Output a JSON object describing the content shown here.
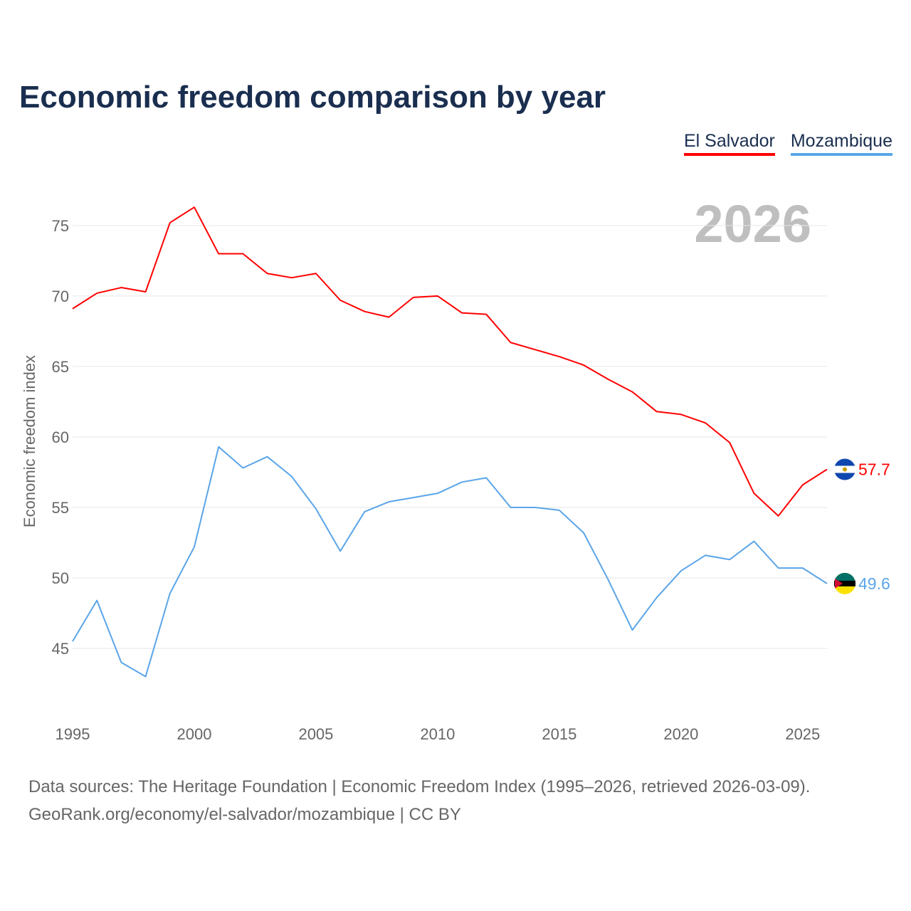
{
  "title": "Economic freedom comparison by year",
  "current_year_label": "2026",
  "footer": {
    "line1": "Data sources: The Heritage Foundation | Economic Freedom Index (1995–2026, retrieved 2026-03-09).",
    "line2": "GeoRank.org/economy/el-salvador/mozambique | CC BY"
  },
  "chart_data": {
    "type": "line",
    "title": "Economic freedom comparison by year",
    "xlabel": "",
    "ylabel": "Economic freedom index",
    "x": [
      1995,
      1996,
      1997,
      1998,
      1999,
      2000,
      2001,
      2002,
      2003,
      2004,
      2005,
      2006,
      2007,
      2008,
      2009,
      2010,
      2011,
      2012,
      2013,
      2014,
      2015,
      2016,
      2017,
      2018,
      2019,
      2020,
      2021,
      2022,
      2023,
      2024,
      2025,
      2026
    ],
    "xticks": [
      "1995",
      "2000",
      "2005",
      "2010",
      "2015",
      "2020",
      "2025"
    ],
    "yticks": [
      "45",
      "50",
      "55",
      "60",
      "65",
      "70",
      "75"
    ],
    "ylim": [
      40,
      78
    ],
    "xlim": [
      1995,
      2026
    ],
    "grid": true,
    "legend_position": "top-right",
    "series": [
      {
        "name": "El Salvador",
        "color": "#ff0000",
        "end_label": "57.7",
        "values": [
          69.1,
          70.2,
          70.6,
          70.3,
          75.2,
          76.3,
          73.0,
          73.0,
          71.6,
          71.3,
          71.6,
          69.7,
          68.9,
          68.5,
          69.9,
          70.0,
          68.8,
          68.7,
          66.7,
          66.2,
          65.7,
          65.1,
          64.1,
          63.2,
          61.8,
          61.6,
          61.0,
          59.6,
          56.0,
          54.4,
          56.6,
          57.7
        ]
      },
      {
        "name": "Mozambique",
        "color": "#5aa5e8",
        "end_label": "49.6",
        "values": [
          45.5,
          48.4,
          44.0,
          43.0,
          48.9,
          52.2,
          59.3,
          57.8,
          58.6,
          57.2,
          54.9,
          51.9,
          54.7,
          55.4,
          55.7,
          56.0,
          56.8,
          57.1,
          55.0,
          55.0,
          54.8,
          53.2,
          49.9,
          46.3,
          48.6,
          50.5,
          51.6,
          51.3,
          52.6,
          50.7,
          50.7,
          49.6
        ]
      }
    ]
  }
}
